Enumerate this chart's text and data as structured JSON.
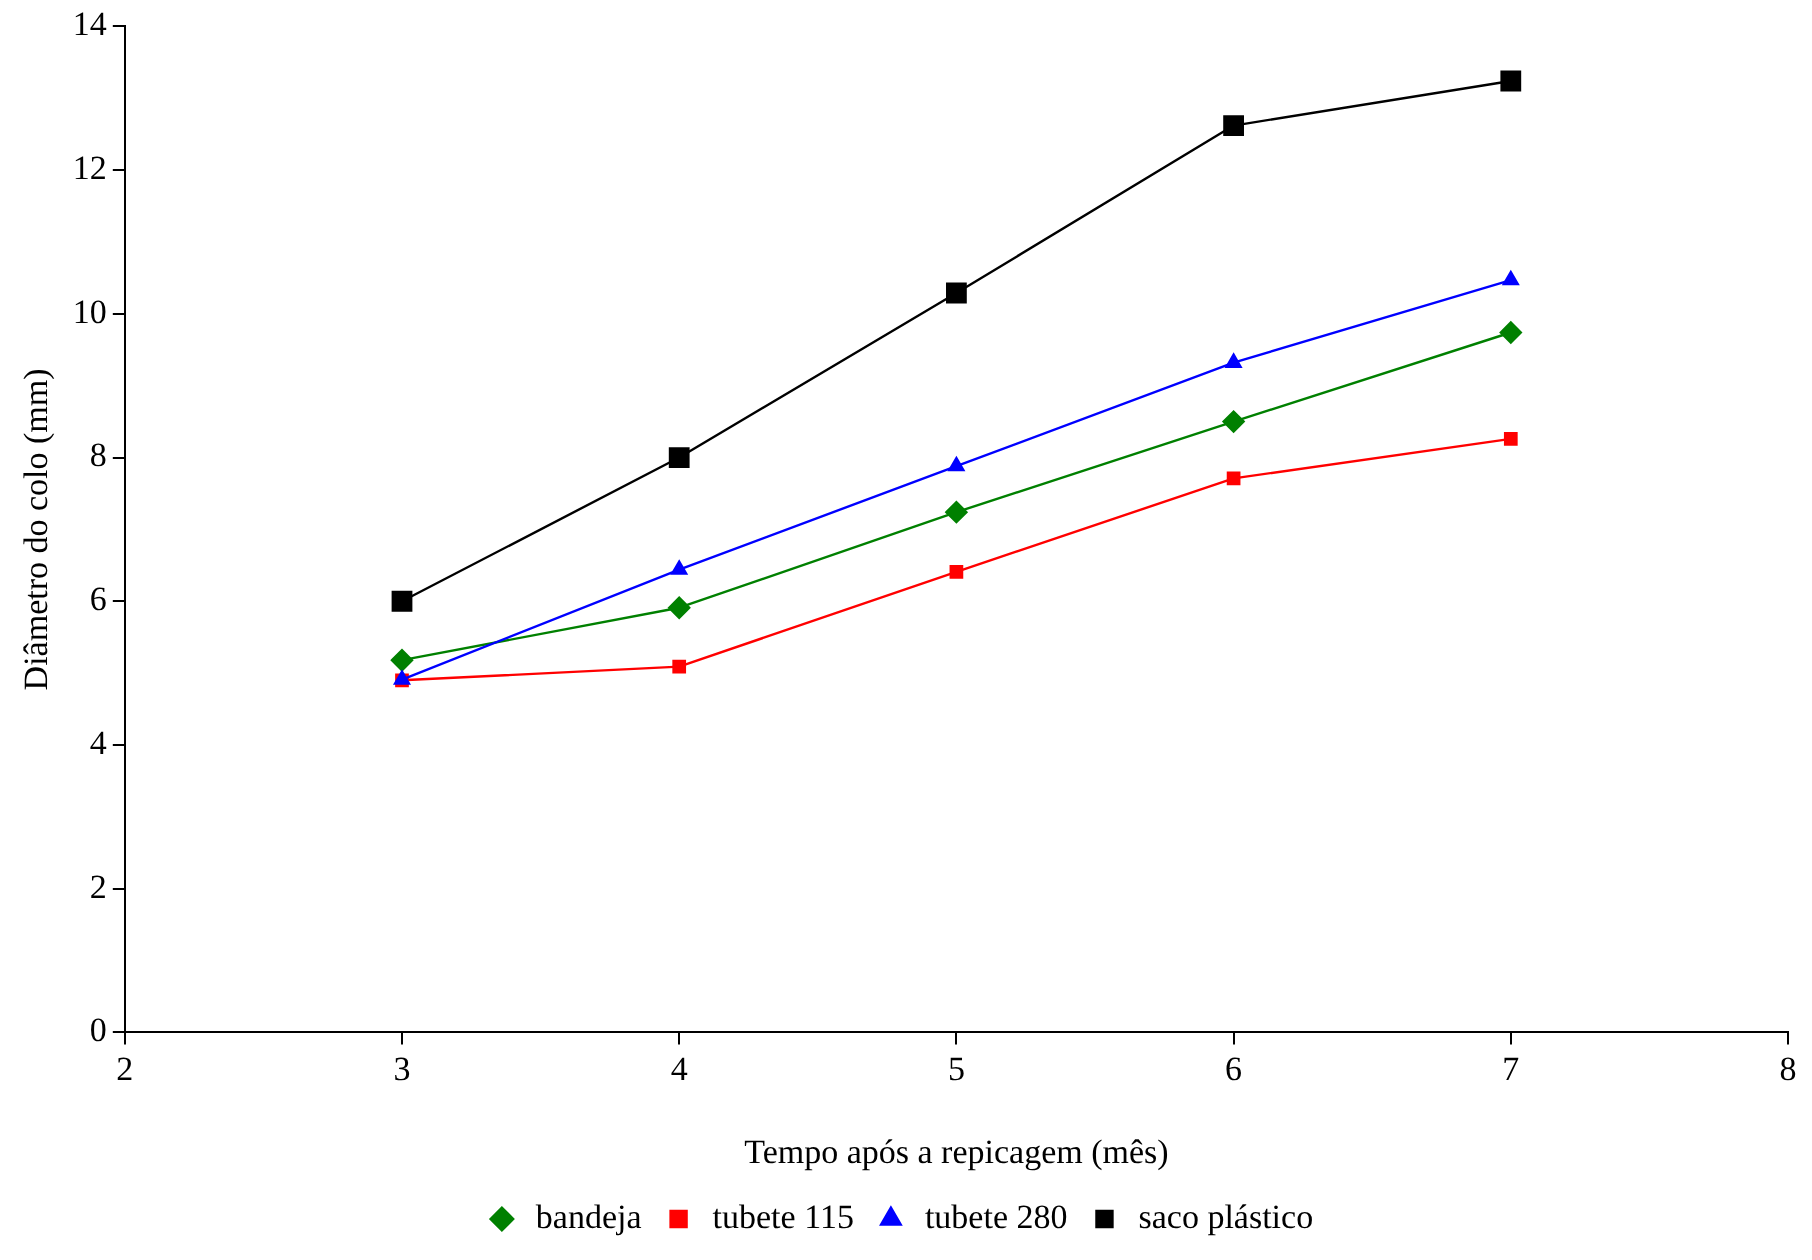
{
  "chart_data": {
    "type": "line",
    "xlabel": "Tempo após a repicagem (mês)",
    "ylabel": "Diâmetro do colo (mm)",
    "xlim": [
      2,
      8
    ],
    "xticks": [
      2,
      3,
      4,
      5,
      6,
      7,
      8
    ],
    "ylim": [
      0,
      14
    ],
    "yticks": [
      0,
      2,
      4,
      6,
      8,
      10,
      12,
      14
    ],
    "x": [
      3,
      4,
      5,
      6,
      7
    ],
    "grid": false,
    "legend": "bottom",
    "line_style": "solid",
    "series": [
      {
        "name": "bandeja",
        "color": "#008000",
        "marker": "diamond",
        "values": [
          5.18,
          5.91,
          7.24,
          8.5,
          9.74
        ]
      },
      {
        "name": "tubete 115",
        "color": "#ff0000",
        "marker": "square",
        "values": [
          4.9,
          5.09,
          6.41,
          7.71,
          8.26
        ]
      },
      {
        "name": "tubete 280",
        "color": "#0000ff",
        "marker": "triangle",
        "values": [
          4.91,
          6.44,
          7.88,
          9.32,
          10.47
        ]
      },
      {
        "name": "saco plástico",
        "color": "#000000",
        "marker": "square",
        "values": [
          6.0,
          8.0,
          10.29,
          12.62,
          13.24
        ]
      }
    ]
  }
}
